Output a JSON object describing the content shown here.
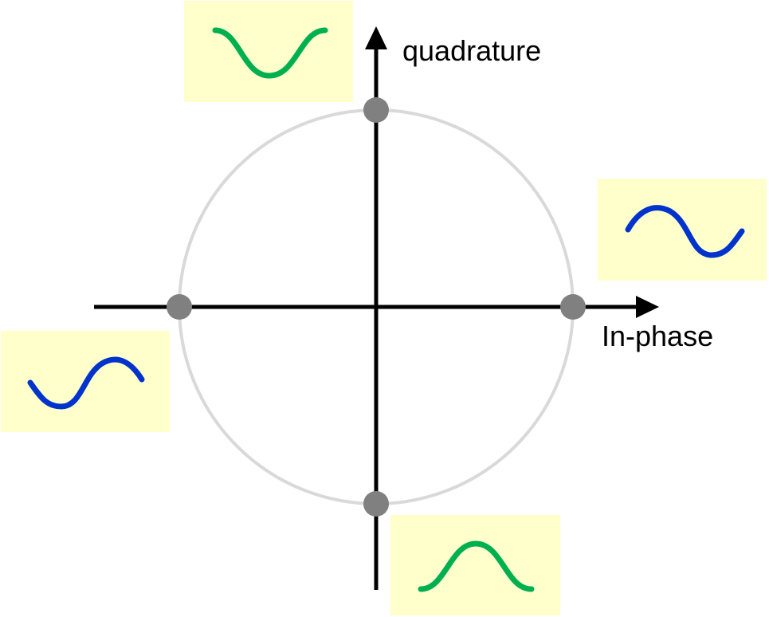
{
  "diagram": {
    "axes": {
      "in_phase_label": "In-phase",
      "quadrature_label": "quadrature"
    },
    "constellation": {
      "ring_color": "#d9d9d9",
      "point_color": "#808080",
      "points": [
        {
          "name": "positive-in-phase",
          "i": 1,
          "q": 0
        },
        {
          "name": "positive-quadrature",
          "i": 0,
          "q": 1
        },
        {
          "name": "negative-in-phase",
          "i": -1,
          "q": 0
        },
        {
          "name": "negative-quadrature",
          "i": 0,
          "q": -1
        }
      ]
    },
    "waveform_cards": {
      "background": "#ffffcc",
      "in_phase_wave_color": "#0033cc",
      "quadrature_wave_color": "#00b050",
      "cards": [
        {
          "name": "positive-quadrature-waveform",
          "phase": "cosine-inverted"
        },
        {
          "name": "positive-in-phase-waveform",
          "phase": "sine"
        },
        {
          "name": "negative-in-phase-waveform",
          "phase": "sine-inverted"
        },
        {
          "name": "negative-quadrature-waveform",
          "phase": "cosine"
        }
      ]
    }
  }
}
